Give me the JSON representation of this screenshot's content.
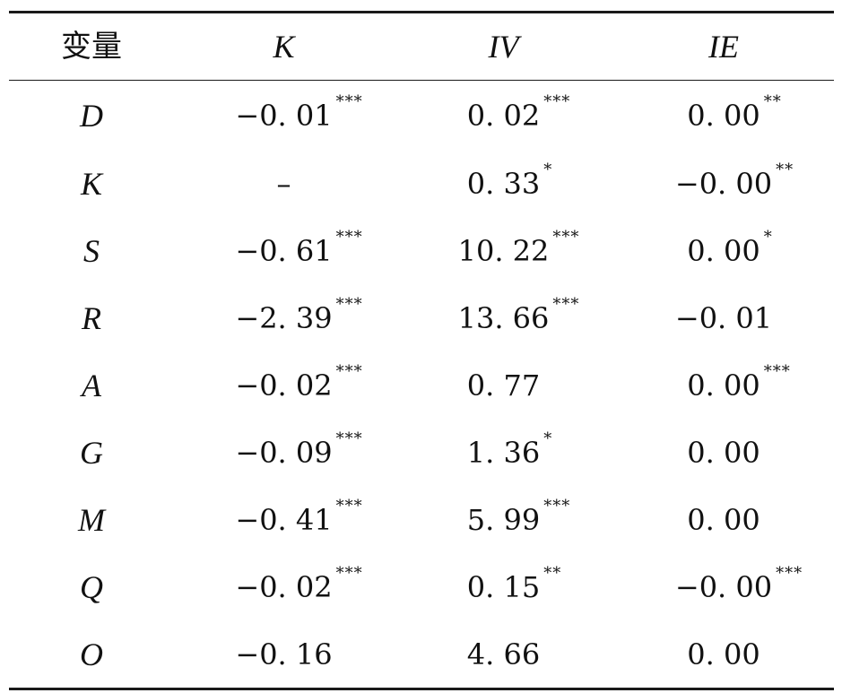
{
  "table": {
    "headers": [
      "变量",
      "K",
      "IV",
      "IE"
    ],
    "rows": [
      {
        "var": "D",
        "cells": [
          {
            "v": "−0. 01",
            "s": "***"
          },
          {
            "v": "0. 02",
            "s": "***"
          },
          {
            "v": "0. 00",
            "s": "**"
          }
        ]
      },
      {
        "var": "K",
        "cells": [
          {
            "v": "–",
            "s": ""
          },
          {
            "v": "0. 33",
            "s": "*"
          },
          {
            "v": "−0. 00",
            "s": "**"
          }
        ]
      },
      {
        "var": "S",
        "cells": [
          {
            "v": "−0. 61",
            "s": "***"
          },
          {
            "v": "10. 22",
            "s": "***"
          },
          {
            "v": "0. 00",
            "s": "*"
          }
        ]
      },
      {
        "var": "R",
        "cells": [
          {
            "v": "−2. 39",
            "s": "***"
          },
          {
            "v": "13. 66",
            "s": "***"
          },
          {
            "v": "−0. 01",
            "s": ""
          }
        ]
      },
      {
        "var": "A",
        "cells": [
          {
            "v": "−0. 02",
            "s": "***"
          },
          {
            "v": "0. 77",
            "s": ""
          },
          {
            "v": "0. 00",
            "s": "***"
          }
        ]
      },
      {
        "var": "G",
        "cells": [
          {
            "v": "−0. 09",
            "s": "***"
          },
          {
            "v": "1. 36",
            "s": "*"
          },
          {
            "v": "0. 00",
            "s": ""
          }
        ]
      },
      {
        "var": "M",
        "cells": [
          {
            "v": "−0. 41",
            "s": "***"
          },
          {
            "v": "5. 99",
            "s": "***"
          },
          {
            "v": "0. 00",
            "s": ""
          }
        ]
      },
      {
        "var": "Q",
        "cells": [
          {
            "v": "−0. 02",
            "s": "***"
          },
          {
            "v": "0. 15",
            "s": "**"
          },
          {
            "v": "−0. 00",
            "s": "***"
          }
        ]
      },
      {
        "var": "O",
        "cells": [
          {
            "v": "−0. 16",
            "s": ""
          },
          {
            "v": "4. 66",
            "s": ""
          },
          {
            "v": "0. 00",
            "s": ""
          }
        ]
      }
    ]
  }
}
